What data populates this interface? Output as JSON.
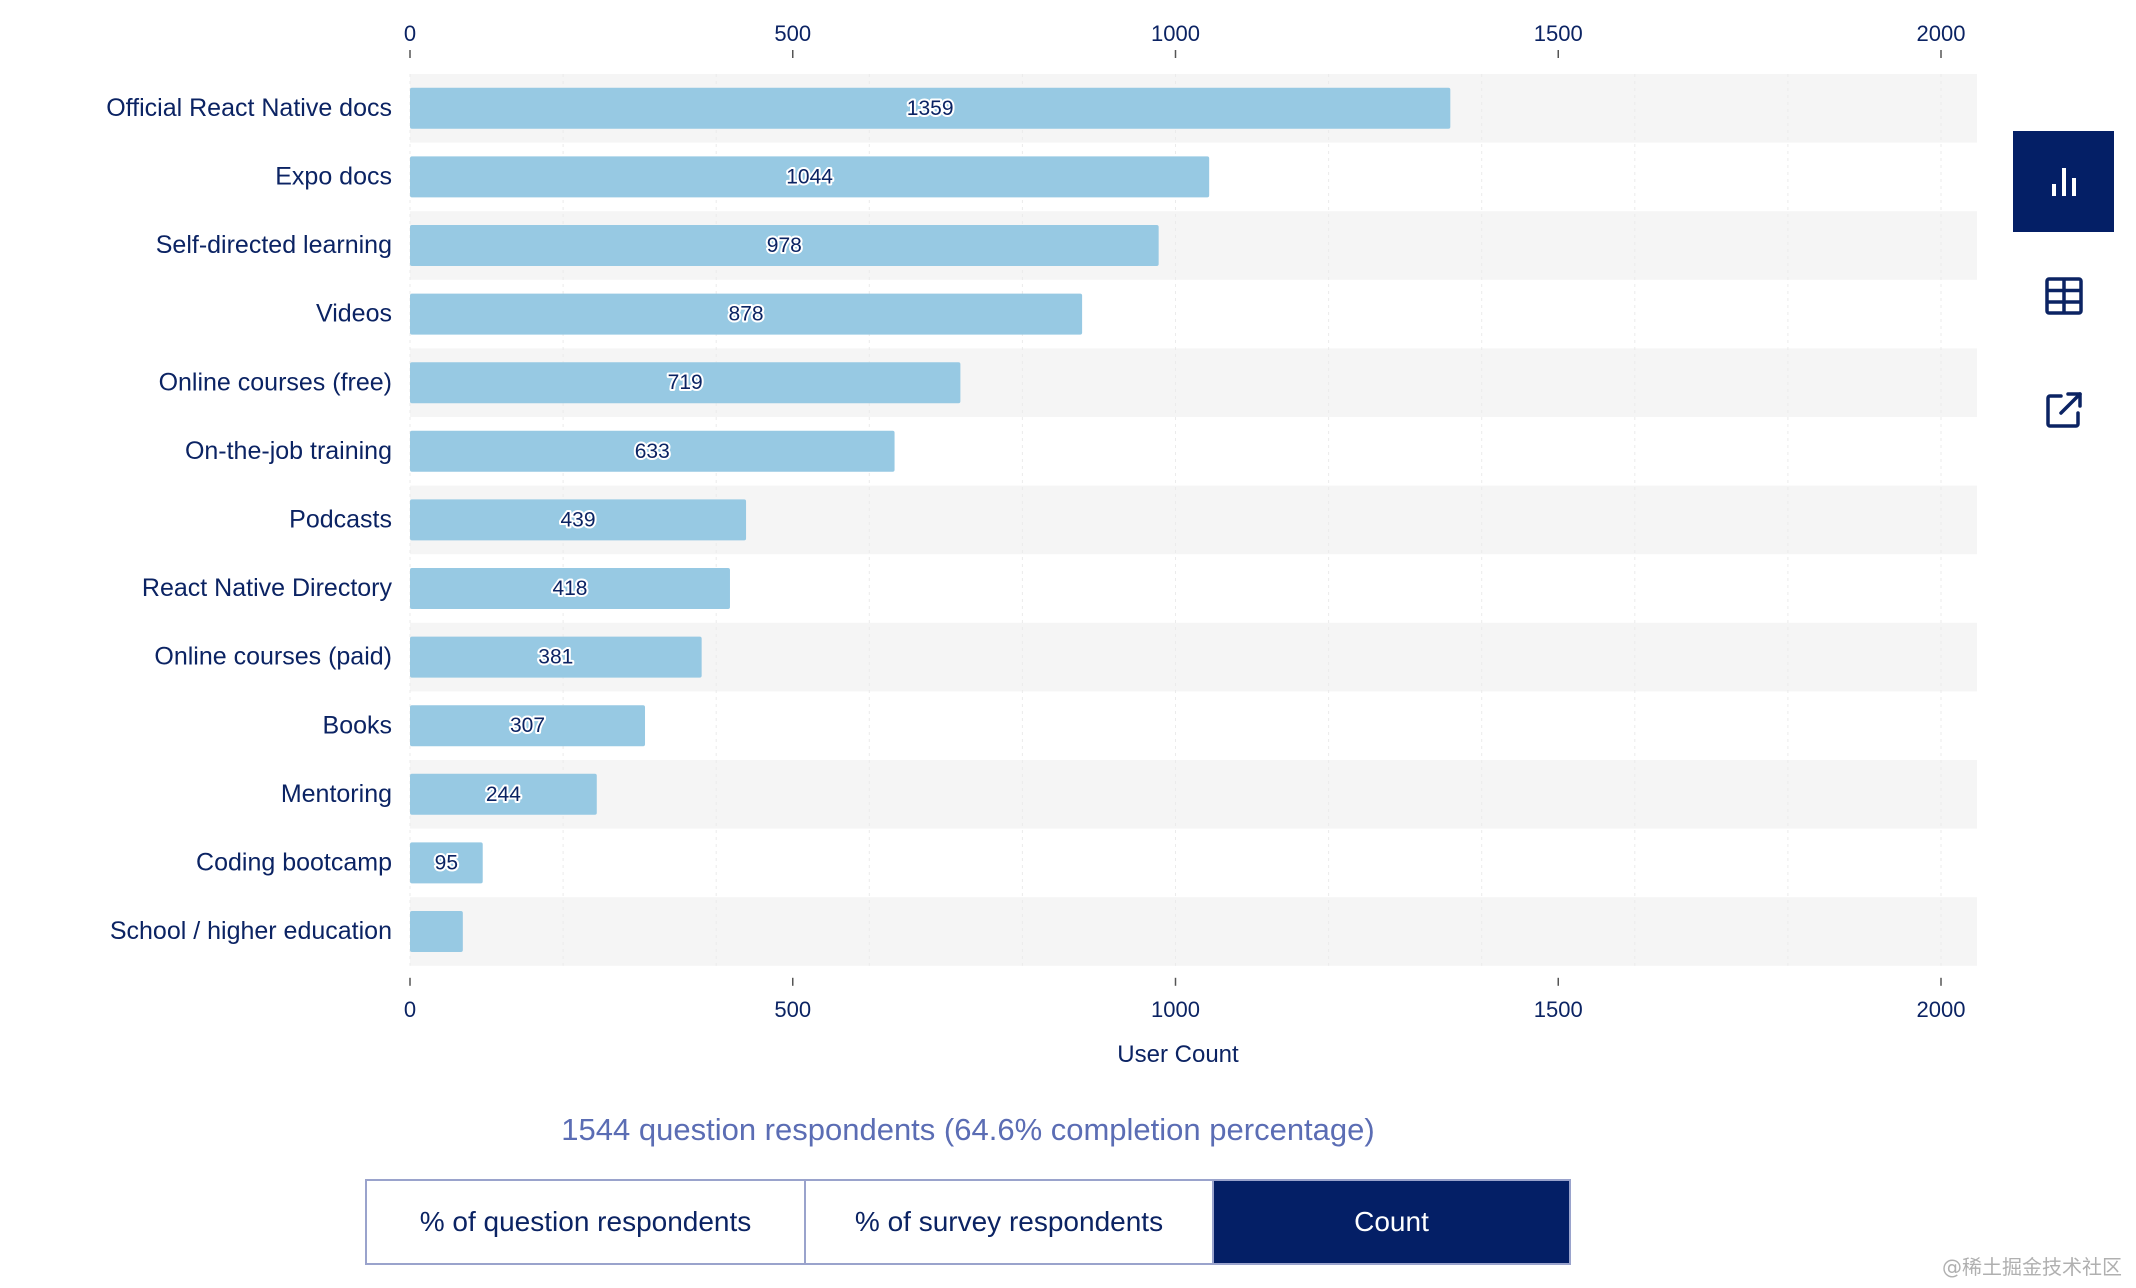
{
  "chart_data": {
    "type": "bar",
    "orientation": "horizontal",
    "title": "",
    "xlabel": "User Count",
    "ylabel": "",
    "xlim": [
      0,
      2000
    ],
    "x_ticks": [
      0,
      500,
      1000,
      1500,
      2000
    ],
    "x_tick_labels": [
      "0",
      "500",
      "1000",
      "1500",
      "2000"
    ],
    "tick_labels_position": "top-and-bottom",
    "grid": true,
    "categories": [
      "Official React Native docs",
      "Expo docs",
      "Self-directed learning",
      "Videos",
      "Online courses (free)",
      "On-the-job training",
      "Podcasts",
      "React Native Directory",
      "Online courses (paid)",
      "Books",
      "Mentoring",
      "Coding bootcamp",
      "School / higher education"
    ],
    "values": [
      1359,
      1044,
      978,
      878,
      719,
      633,
      439,
      418,
      381,
      307,
      244,
      95,
      69
    ],
    "value_labels": [
      "1359",
      "1044",
      "978",
      "878",
      "719",
      "633",
      "439",
      "418",
      "381",
      "307",
      "244",
      "95",
      ""
    ],
    "colors": {
      "bar": "#97c9e3",
      "band": "#f5f5f5",
      "text": "#0b2363"
    }
  },
  "side_tools": [
    {
      "name": "chart-view",
      "icon": "bar-chart-icon",
      "active": true
    },
    {
      "name": "table-view",
      "icon": "table-icon",
      "active": false
    },
    {
      "name": "export",
      "icon": "external-link-icon",
      "active": false
    }
  ],
  "summary": "1544 question respondents (64.6% completion percentage)",
  "mode_buttons": [
    {
      "label": "% of question respondents",
      "active": false
    },
    {
      "label": "% of survey respondents",
      "active": false
    },
    {
      "label": "Count",
      "active": true
    }
  ],
  "watermark": "@稀土掘金技术社区",
  "colors": {
    "accent": "#041f66",
    "summary_text": "#5b6db4"
  }
}
